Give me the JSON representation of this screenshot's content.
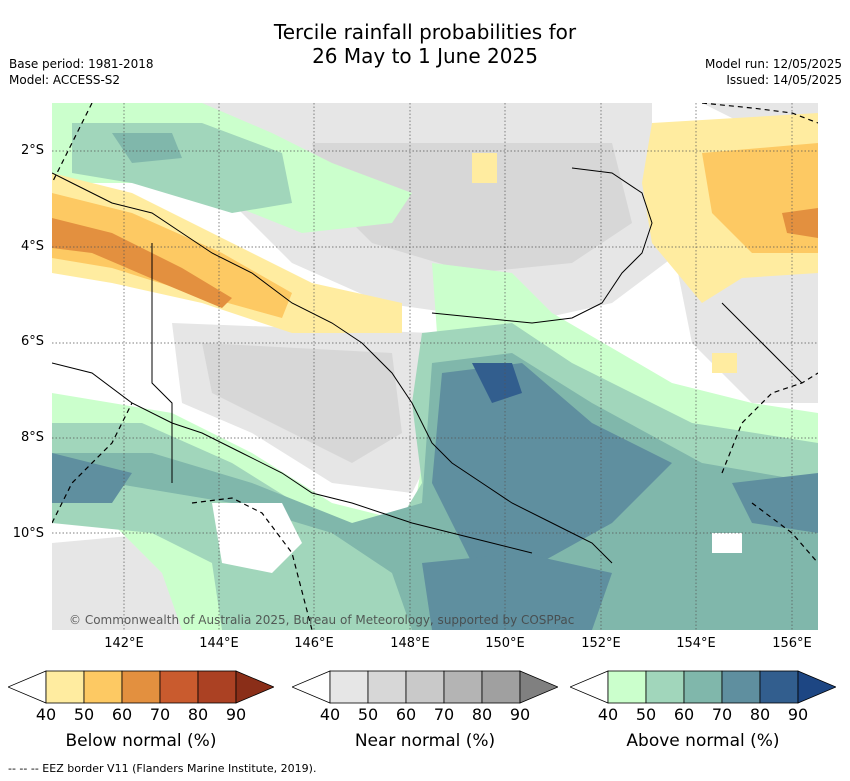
{
  "header": {
    "title_line1": "Tercile rainfall probabilities for",
    "title_line2": "26 May to 1 June 2025",
    "base_period": "Base period: 1981-2018",
    "model": "Model: ACCESS-S2",
    "model_run": "Model run: 12/05/2025",
    "issued": "Issued: 14/05/2025"
  },
  "map": {
    "latitude_labels": [
      "2°S",
      "4°S",
      "6°S",
      "8°S",
      "10°S"
    ],
    "longitude_labels": [
      "142°E",
      "144°E",
      "146°E",
      "148°E",
      "150°E",
      "152°E",
      "154°E",
      "156°E"
    ],
    "copyright": "© Commonwealth of Australia 2025, Bureau of Meteorology, supported by COSPPac"
  },
  "colorbars": [
    {
      "label": "Below normal (%)",
      "ticks": [
        "40",
        "50",
        "60",
        "70",
        "80",
        "90"
      ],
      "colors": [
        "#ffffff",
        "#ffeca0",
        "#fdc963",
        "#e3903f",
        "#c95b2e",
        "#ab4123",
        "#8a2e18"
      ]
    },
    {
      "label": "Near normal (%)",
      "ticks": [
        "40",
        "50",
        "60",
        "70",
        "80",
        "90"
      ],
      "colors": [
        "#ffffff",
        "#e6e6e6",
        "#d7d7d7",
        "#c9c9c9",
        "#b4b4b4",
        "#a0a0a0",
        "#808080"
      ]
    },
    {
      "label": "Above normal (%)",
      "ticks": [
        "40",
        "50",
        "60",
        "70",
        "80",
        "90"
      ],
      "colors": [
        "#ffffff",
        "#cbffcc",
        "#a1d6bb",
        "#80b7ab",
        "#5f8f9f",
        "#325e8e",
        "#1d4683"
      ]
    }
  ],
  "footer": {
    "eez_legend": "--  --  -- EEZ border V11 (Flanders Marine Institute, 2019)."
  }
}
